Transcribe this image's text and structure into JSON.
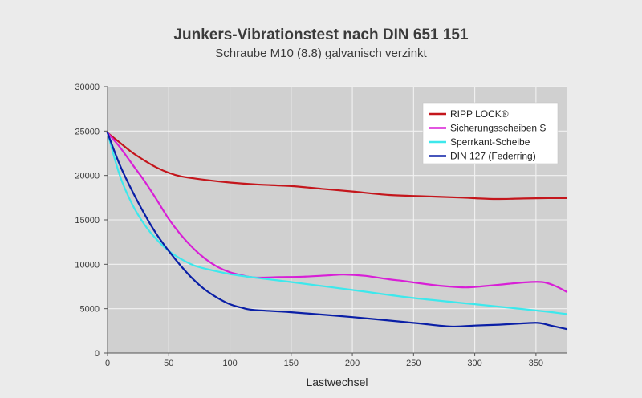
{
  "chart_data": {
    "type": "line",
    "title": "Junkers-Vibrationstest nach DIN 651 151",
    "subtitle": "Schraube M10 (8.8) galvanisch verzinkt",
    "xlabel": "Lastwechsel",
    "ylabel": "",
    "xlim": [
      0,
      375
    ],
    "ylim": [
      0,
      30000
    ],
    "x_ticks": [
      "0",
      "50",
      "100",
      "150",
      "200",
      "250",
      "300",
      "350"
    ],
    "y_ticks": [
      "0",
      "5000",
      "10000",
      "15000",
      "20000",
      "25000",
      "30000"
    ],
    "grid": true,
    "legend_position": "top-right",
    "series": [
      {
        "name": "RIPP LOCK®",
        "color": "#c4161c",
        "x": [
          0,
          10,
          20,
          30,
          40,
          50,
          60,
          80,
          100,
          120,
          150,
          175,
          200,
          230,
          260,
          290,
          315,
          340,
          360,
          375
        ],
        "y": [
          24800,
          23700,
          22600,
          21700,
          20900,
          20300,
          19900,
          19500,
          19200,
          19000,
          18800,
          18500,
          18200,
          17800,
          17650,
          17500,
          17350,
          17400,
          17450,
          17450
        ]
      },
      {
        "name": "Sicherungsscheiben S",
        "color": "#d81fd6",
        "x": [
          0,
          10,
          20,
          30,
          40,
          50,
          60,
          70,
          80,
          90,
          100,
          110,
          120,
          140,
          160,
          180,
          193,
          210,
          230,
          240,
          250,
          270,
          290,
          300,
          320,
          340,
          355,
          365,
          375
        ],
        "y": [
          24800,
          23200,
          21300,
          19400,
          17300,
          15100,
          13300,
          11800,
          10600,
          9700,
          9100,
          8750,
          8500,
          8550,
          8600,
          8750,
          8850,
          8700,
          8300,
          8150,
          7950,
          7600,
          7400,
          7450,
          7700,
          7950,
          8000,
          7600,
          6900
        ]
      },
      {
        "name": "Sperrkant-Scheibe",
        "color": "#3de8ec",
        "x": [
          0,
          10,
          20,
          30,
          40,
          50,
          60,
          70,
          80,
          100,
          120,
          150,
          200,
          250,
          300,
          350,
          375
        ],
        "y": [
          24800,
          20000,
          16800,
          14500,
          12800,
          11500,
          10600,
          9900,
          9500,
          8900,
          8500,
          8000,
          7100,
          6200,
          5500,
          4800,
          4400
        ]
      },
      {
        "name": "DIN 127 (Federring)",
        "color": "#0a1fa6",
        "x": [
          0,
          10,
          20,
          30,
          40,
          50,
          60,
          70,
          80,
          90,
          100,
          110,
          120,
          150,
          200,
          250,
          280,
          300,
          320,
          340,
          352,
          362,
          375
        ],
        "y": [
          24800,
          21200,
          18300,
          15700,
          13400,
          11500,
          9800,
          8300,
          7100,
          6200,
          5500,
          5100,
          4850,
          4600,
          4050,
          3400,
          3000,
          3100,
          3200,
          3350,
          3400,
          3100,
          2700
        ]
      }
    ]
  }
}
